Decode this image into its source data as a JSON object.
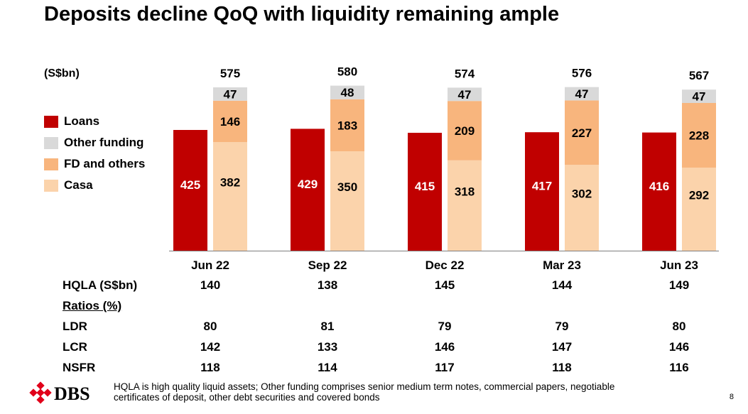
{
  "title": "Deposits decline QoQ with liquidity remaining ample",
  "unit_label": "(S$bn)",
  "colors": {
    "loans": "#C00000",
    "other_funding": "#D9D9D9",
    "fd": "#F8B57D",
    "casa": "#FBD3AB"
  },
  "legend": [
    {
      "label": "Loans",
      "color": "#C00000"
    },
    {
      "label": "Other funding",
      "color": "#D9D9D9"
    },
    {
      "label": "FD and others",
      "color": "#F8B57D"
    },
    {
      "label": "Casa",
      "color": "#FBD3AB"
    }
  ],
  "chart_data": {
    "type": "bar",
    "title": "Deposits decline QoQ with liquidity remaining ample",
    "ylabel": "(S$bn)",
    "categories": [
      "Jun 22",
      "Sep 22",
      "Dec 22",
      "Mar 23",
      "Jun 23"
    ],
    "loans": {
      "name": "Loans",
      "values": [
        425,
        429,
        415,
        417,
        416
      ]
    },
    "deposits_stack": [
      {
        "name": "Casa",
        "values": [
          382,
          350,
          318,
          302,
          292
        ]
      },
      {
        "name": "FD and others",
        "values": [
          146,
          183,
          209,
          227,
          228
        ]
      },
      {
        "name": "Other funding",
        "values": [
          47,
          48,
          47,
          47,
          47
        ]
      }
    ],
    "totals": [
      575,
      580,
      574,
      576,
      567
    ],
    "legend_position": "left"
  },
  "table": {
    "hqla_label": "HQLA (S$bn)",
    "hqla": [
      "140",
      "138",
      "145",
      "144",
      "149"
    ],
    "ratios_label": "Ratios (%)",
    "rows": [
      {
        "label": "LDR",
        "values": [
          "80",
          "81",
          "79",
          "79",
          "80"
        ]
      },
      {
        "label": "LCR",
        "values": [
          "142",
          "133",
          "146",
          "147",
          "146"
        ]
      },
      {
        "label": "NSFR",
        "values": [
          "118",
          "114",
          "117",
          "118",
          "116"
        ]
      }
    ]
  },
  "footer": {
    "logo_text": "DBS",
    "note_line1": "HQLA is high quality liquid assets; Other funding comprises senior medium term notes, commercial papers, negotiable",
    "note_line2": "certificates of deposit, other debt securities and covered bonds",
    "page_number": "8"
  }
}
